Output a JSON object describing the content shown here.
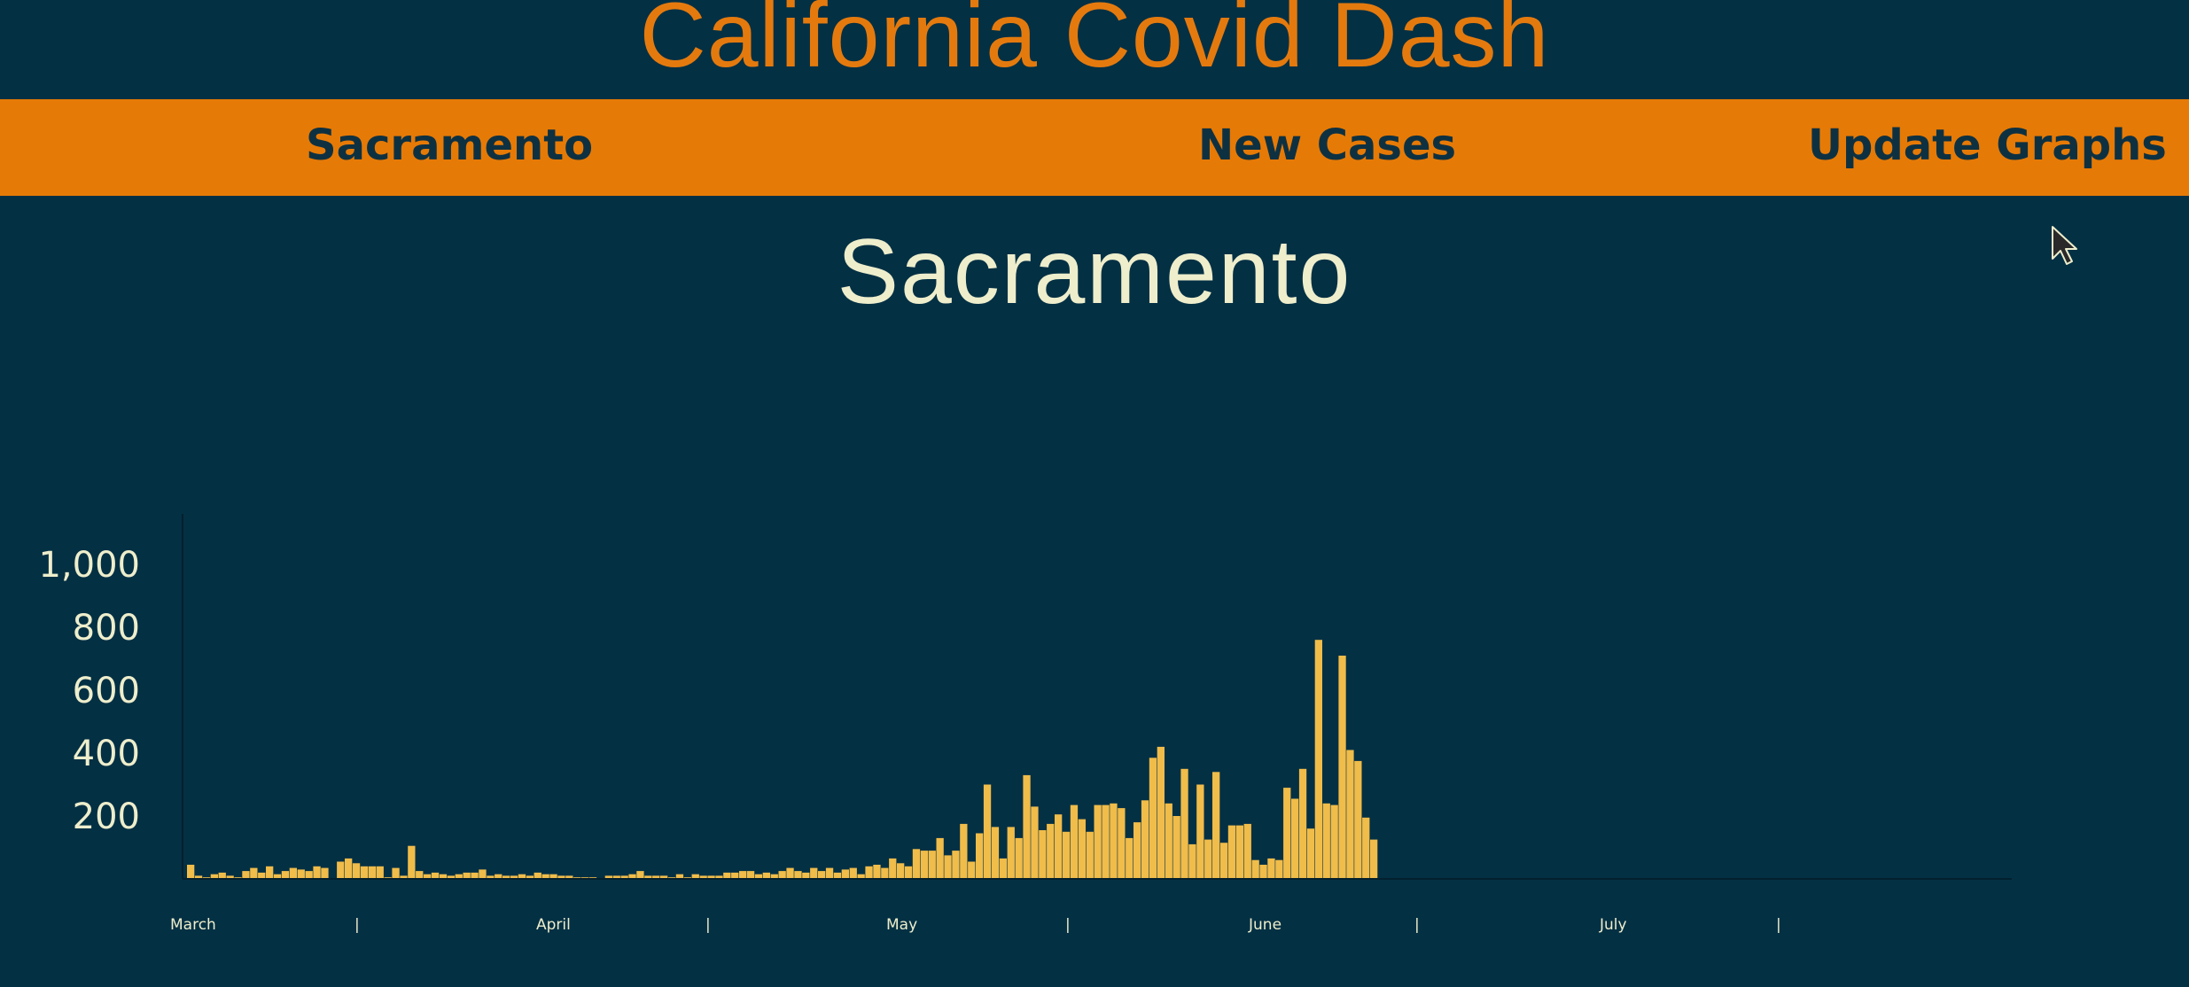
{
  "app": {
    "title": "California Covid Dash"
  },
  "nav": {
    "county": "Sacramento",
    "metric": "New Cases",
    "update_button": "Update Graphs"
  },
  "page": {
    "title": "Sacramento"
  },
  "colors": {
    "background": "#043044",
    "accent": "#e67a06",
    "bar": "#f0bc4a",
    "text": "#eeeecc"
  },
  "icons": {
    "cursor": "mouse-pointer-icon"
  },
  "chart_data": {
    "type": "bar",
    "title": "",
    "xlabel": "",
    "ylabel": "",
    "ylim": [
      0,
      1150
    ],
    "yticks": [
      200,
      400,
      600,
      800,
      1000
    ],
    "ytick_labels": [
      "200",
      "400",
      "600",
      "800",
      "1,000"
    ],
    "x_labels": [
      "March",
      "|",
      "April",
      "|",
      "May",
      "|",
      "June",
      "|",
      "July",
      "|"
    ],
    "grid": false,
    "series": [
      {
        "values": [
          45,
          10,
          5,
          15,
          20,
          10,
          5,
          25,
          35,
          20,
          40,
          15,
          25,
          35,
          30,
          25,
          40,
          35,
          0,
          55,
          65,
          50,
          40,
          40,
          40,
          5,
          35,
          10,
          105,
          25,
          15,
          20,
          15,
          10,
          15,
          20,
          20,
          30,
          10,
          15,
          10,
          10,
          15,
          10,
          20,
          15,
          15,
          10,
          10,
          5,
          5,
          5,
          0,
          10,
          10,
          10,
          15,
          25,
          10,
          10,
          10,
          5,
          15,
          5,
          15,
          10,
          10,
          10,
          20,
          20,
          25,
          25,
          15,
          20,
          15,
          25,
          35,
          25,
          20,
          35,
          25,
          35,
          20,
          30,
          35,
          15,
          40,
          45,
          35,
          65,
          50,
          40,
          95,
          90,
          90,
          130,
          75,
          90,
          175,
          55,
          145,
          300,
          165,
          65,
          165,
          130,
          330,
          230,
          155,
          175,
          205,
          150,
          235,
          190,
          150,
          235,
          235,
          240,
          225,
          130,
          180,
          250,
          385,
          420,
          240,
          200,
          350,
          110,
          300,
          125,
          340,
          115,
          170,
          170,
          175,
          60,
          45,
          65,
          60,
          290,
          255,
          350,
          160,
          760,
          240,
          235,
          710,
          410,
          375,
          195,
          125
        ]
      }
    ]
  }
}
